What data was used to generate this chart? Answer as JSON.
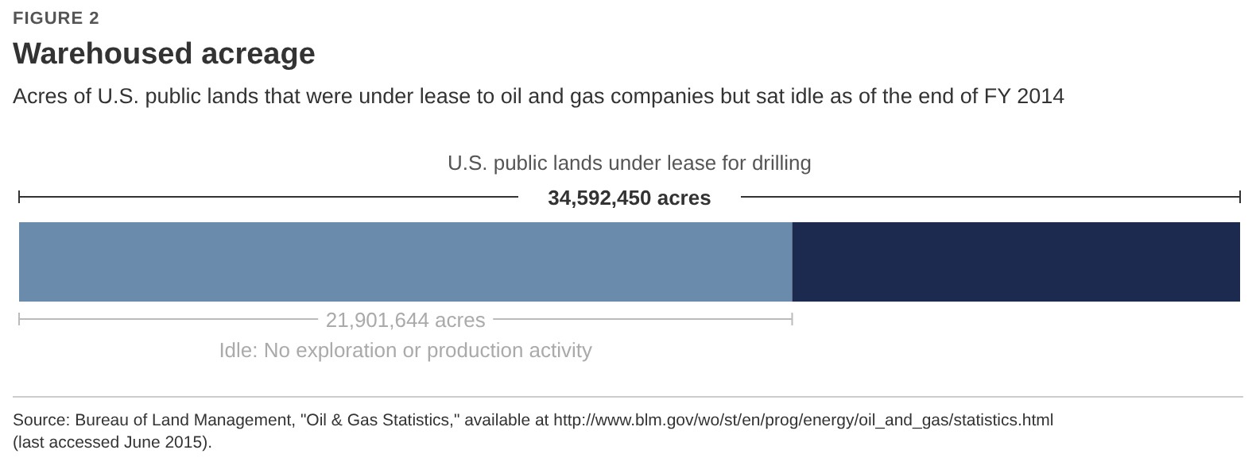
{
  "chart_data": {
    "type": "bar",
    "orientation": "horizontal",
    "stacked": true,
    "title": "Warehoused acreage",
    "subtitle": "Acres of U.S. public lands that were under lease to oil and gas companies but sat idle as of the end of FY 2014",
    "categories": [
      null
    ],
    "series": [
      {
        "name": "Idle: No exploration or production activity",
        "color": "#6a8bab",
        "values": [
          21901644
        ],
        "value_labels": [
          "21,901,644 acres"
        ]
      },
      {
        "color": "#1b2a4e",
        "values": [
          12690806
        ]
      }
    ],
    "totals": [
      "34,592,450 acres"
    ],
    "annotations": [
      "FIGURE 2",
      "U.S. public lands under lease for drilling",
      "Source: Bureau of Land Management, \"Oil & Gas Statistics,\" available at http://www.blm.gov/wo/st/en/prog/energy/oil_and_gas/statistics.html (last accessed June 2015)."
    ]
  }
}
